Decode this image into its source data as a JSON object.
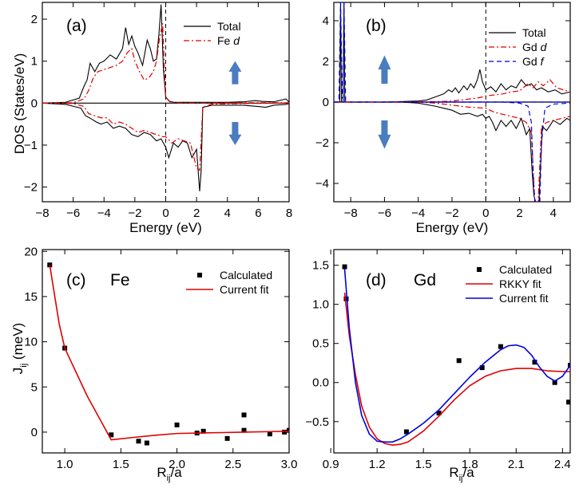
{
  "figure": {
    "ylabel_top": "DOS (States/eV)",
    "ylabel_bottom": "J",
    "ylabel_bottom_sub": "ij",
    "ylabel_bottom_unit": " (meV)",
    "xlabel_bottom": "R",
    "xlabel_bottom_sub": "ij",
    "xlabel_bottom_tail": "/a"
  },
  "colors": {
    "total": "#000000",
    "d": "#e00000",
    "f": "#0000e0",
    "arrow": "#4a7cc0",
    "calc": "#000000",
    "fit": "#e00000",
    "current": "#0000e0"
  },
  "chart_data": [
    {
      "panel": "a",
      "type": "line",
      "label": "(a)",
      "xlabel": "Energy (eV)",
      "ylabel": "DOS (States/eV)",
      "xlim": [
        -8,
        8
      ],
      "ylim": [
        -2.35,
        2.4
      ],
      "xticks": [
        -8,
        -6,
        -4,
        -2,
        0,
        2,
        4,
        6,
        8
      ],
      "yticks": [
        -2,
        -1,
        0,
        1,
        2
      ],
      "legend": [
        "Total",
        "Fe d"
      ],
      "fermi_level": 0,
      "series": [
        {
          "name": "Total up",
          "style": "solid",
          "x": [
            -8,
            -6.5,
            -5.6,
            -5.3,
            -5.1,
            -4.9,
            -4.6,
            -4.3,
            -4.0,
            -3.6,
            -3.2,
            -2.8,
            -2.6,
            -2.4,
            -2.2,
            -2.0,
            -1.8,
            -1.5,
            -1.2,
            -1.0,
            -0.8,
            -0.6,
            -0.45,
            -0.3,
            -0.15,
            0,
            0.2,
            0.5,
            1,
            2,
            3,
            4,
            5,
            5.8,
            6.3,
            7,
            7.8,
            8
          ],
          "y": [
            0,
            0.02,
            0.12,
            0.4,
            0.55,
            0.95,
            0.75,
            0.95,
            1.0,
            1.15,
            1.05,
            1.3,
            1.8,
            1.4,
            1.6,
            1.35,
            1.2,
            0.9,
            1.5,
            1.3,
            1.0,
            1.05,
            1.6,
            2.35,
            0.8,
            0.15,
            0.05,
            0.02,
            0.02,
            0.02,
            0.02,
            0.02,
            0.03,
            0.06,
            0.04,
            0.03,
            0.1,
            0.02
          ]
        },
        {
          "name": "Fe d up",
          "style": "dashdot",
          "x": [
            -8,
            -6,
            -5.3,
            -5.0,
            -4.7,
            -4.4,
            -4.0,
            -3.6,
            -3.2,
            -2.8,
            -2.5,
            -2.2,
            -2.0,
            -1.7,
            -1.4,
            -1.1,
            -0.8,
            -0.6,
            -0.4,
            -0.2,
            0,
            0.3,
            1,
            3,
            5,
            7,
            8
          ],
          "y": [
            0,
            0.01,
            0.1,
            0.3,
            0.6,
            0.75,
            0.8,
            0.85,
            0.9,
            1.0,
            1.2,
            1.3,
            1.0,
            0.75,
            0.55,
            0.6,
            0.75,
            1.0,
            1.55,
            1.9,
            0.15,
            0.02,
            0.01,
            0.01,
            0.01,
            0.01,
            0.01
          ]
        },
        {
          "name": "Total down",
          "style": "solid",
          "x": [
            -8,
            -6.5,
            -5.5,
            -5.2,
            -4.8,
            -4.5,
            -4.2,
            -3.8,
            -3.4,
            -3.0,
            -2.6,
            -2.2,
            -1.8,
            -1.4,
            -1.0,
            -0.6,
            -0.3,
            0,
            0.2,
            0.5,
            0.8,
            1.1,
            1.4,
            1.7,
            2.0,
            2.2,
            2.3,
            2.4,
            3,
            4,
            5,
            6,
            6.5,
            7,
            7.8,
            8
          ],
          "y": [
            0,
            -0.03,
            -0.12,
            -0.3,
            -0.38,
            -0.45,
            -0.5,
            -0.45,
            -0.6,
            -0.55,
            -0.6,
            -0.75,
            -0.8,
            -0.7,
            -0.75,
            -0.9,
            -0.85,
            -1.05,
            -1.3,
            -0.95,
            -1.05,
            -0.9,
            -0.95,
            -1.3,
            -1.1,
            -2.1,
            -1.6,
            -0.1,
            -0.05,
            -0.05,
            -0.05,
            -0.08,
            -0.1,
            -0.05,
            -0.03,
            -0.01
          ]
        },
        {
          "name": "Fe d down",
          "style": "dashdot",
          "x": [
            -8,
            -6,
            -5.3,
            -5.0,
            -4.6,
            -4.2,
            -3.8,
            -3.4,
            -3.0,
            -2.6,
            -2.2,
            -1.8,
            -1.4,
            -1.0,
            -0.6,
            -0.2,
            0,
            0.4,
            0.8,
            1.2,
            1.6,
            2.0,
            2.2,
            2.4,
            3,
            5,
            8
          ],
          "y": [
            0,
            -0.01,
            -0.08,
            -0.25,
            -0.3,
            -0.35,
            -0.35,
            -0.5,
            -0.45,
            -0.5,
            -0.6,
            -0.7,
            -0.65,
            -0.7,
            -0.75,
            -0.8,
            -0.8,
            -0.95,
            -0.85,
            -0.9,
            -0.95,
            -1.55,
            -1.6,
            -0.1,
            -0.02,
            -0.01,
            0
          ]
        }
      ]
    },
    {
      "panel": "b",
      "type": "line",
      "label": "(b)",
      "xlabel": "Energy (eV)",
      "xlim": [
        -9,
        5
      ],
      "ylim": [
        -4.9,
        4.9
      ],
      "xticks": [
        -8,
        -6,
        -4,
        -2,
        0,
        2,
        4
      ],
      "yticks": [
        -4,
        -2,
        0,
        2,
        4
      ],
      "legend": [
        "Total",
        "Gd d",
        "Gd f"
      ],
      "fermi_level": 0,
      "series": [
        {
          "name": "Total up",
          "style": "solid",
          "x": [
            -9,
            -8.8,
            -8.65,
            -8.6,
            -8.55,
            -8.45,
            -8.4,
            -8.35,
            -8.2,
            -6,
            -4,
            -3.5,
            -3,
            -2.5,
            -2.2,
            -2.0,
            -1.8,
            -1.6,
            -1.3,
            -1.1,
            -0.9,
            -0.7,
            -0.5,
            -0.35,
            -0.2,
            0,
            0.3,
            0.6,
            0.9,
            1.2,
            1.5,
            1.8,
            2.1,
            2.4,
            2.7,
            3.0,
            3.3,
            3.7,
            4.1,
            4.5,
            5
          ],
          "y": [
            0,
            0,
            0,
            4.9,
            0,
            0,
            4.9,
            0,
            0,
            0,
            0.05,
            0.1,
            0.25,
            0.4,
            0.6,
            0.5,
            0.7,
            0.45,
            0.8,
            0.6,
            0.9,
            0.7,
            1.1,
            1.6,
            1.0,
            0.6,
            0.75,
            0.5,
            0.9,
            0.6,
            0.8,
            0.7,
            1.1,
            0.8,
            0.9,
            0.6,
            0.7,
            0.5,
            0.6,
            0.4,
            0.5
          ]
        },
        {
          "name": "Gd d up",
          "style": "dashdot",
          "x": [
            -9,
            -4,
            -3,
            -2,
            -1.5,
            -1,
            -0.5,
            -0.2,
            0,
            0.5,
            1.0,
            1.5,
            2.0,
            2.5,
            2.8,
            3.1,
            3.4,
            3.8,
            4.2,
            4.6,
            5
          ],
          "y": [
            0,
            0,
            0.02,
            0.05,
            0.1,
            0.15,
            0.2,
            0.25,
            0.3,
            0.35,
            0.4,
            0.5,
            0.55,
            0.9,
            0.7,
            1.0,
            0.8,
            1.1,
            0.7,
            0.6,
            0.5
          ]
        },
        {
          "name": "Gd f up",
          "style": "dashed",
          "x": [
            -9,
            -8.7,
            -8.6,
            -8.5,
            -8.45,
            -8.4,
            -8.3,
            -8.0,
            5
          ],
          "y": [
            0,
            0,
            4.9,
            0.2,
            0.2,
            4.9,
            0,
            0,
            0
          ]
        },
        {
          "name": "Total down",
          "style": "solid",
          "x": [
            -9,
            -5,
            -4,
            -3,
            -2.5,
            -2.0,
            -1.5,
            -1.0,
            -0.5,
            -0.2,
            0,
            0.2,
            0.4,
            0.6,
            0.9,
            1.2,
            1.5,
            1.8,
            2.1,
            2.4,
            2.6,
            2.75,
            2.85,
            2.95,
            3.05,
            3.15,
            3.25,
            3.35,
            3.6,
            4.0,
            4.4,
            4.8,
            5
          ],
          "y": [
            0,
            0,
            -0.05,
            -0.2,
            -0.3,
            -0.4,
            -0.6,
            -0.55,
            -0.7,
            -0.6,
            -0.8,
            -0.7,
            -1.0,
            -1.4,
            -0.9,
            -1.2,
            -0.9,
            -1.3,
            -0.8,
            -1.6,
            -1.3,
            -3.5,
            -4.6,
            -4.9,
            -4.9,
            -4.9,
            -3.0,
            -1.2,
            -1.4,
            -0.9,
            -1.1,
            -0.8,
            -0.9
          ]
        },
        {
          "name": "Gd d down",
          "style": "dashdot",
          "x": [
            -9,
            -4,
            -3,
            -2,
            -1,
            0,
            0.5,
            1.0,
            1.5,
            2.0,
            2.4,
            2.7,
            2.9,
            3.1,
            3.3,
            3.6,
            4.0,
            4.5,
            5
          ],
          "y": [
            0,
            0,
            -0.05,
            -0.15,
            -0.25,
            -0.3,
            -0.5,
            -0.6,
            -0.7,
            -0.8,
            -1.0,
            -1.5,
            -4.9,
            -4.9,
            -1.2,
            -1.0,
            -0.9,
            -0.8,
            -0.7
          ]
        },
        {
          "name": "Gd f down",
          "style": "dashed",
          "x": [
            -9,
            1,
            2,
            2.5,
            2.7,
            2.8,
            2.9,
            3.0,
            3.1,
            3.2,
            3.3,
            3.5,
            4.0,
            5
          ],
          "y": [
            0,
            0,
            -0.05,
            -0.2,
            -1.0,
            -3.5,
            -4.9,
            -4.9,
            -4.9,
            -4.9,
            -2.0,
            -0.3,
            -0.1,
            -0.05
          ]
        }
      ]
    },
    {
      "panel": "c",
      "type": "scatter",
      "label": "(c)",
      "element": "Fe",
      "xlabel": "Rij/a",
      "ylabel": "Jij (meV)",
      "xlim": [
        0.8,
        3.0
      ],
      "ylim": [
        -2.3,
        20.2
      ],
      "xticks": [
        1.0,
        1.5,
        2.0,
        2.5,
        3.0
      ],
      "yticks": [
        0,
        5,
        10,
        15,
        20
      ],
      "legend": [
        "Calculated",
        "Current fit"
      ],
      "series": [
        {
          "name": "Calculated",
          "x": [
            0.866,
            1.0,
            1.414,
            1.658,
            1.732,
            2.0,
            2.179,
            2.236,
            2.449,
            2.598,
            2.598,
            2.828,
            2.958,
            3.0
          ],
          "y": [
            18.5,
            9.3,
            -0.3,
            -1.0,
            -1.2,
            0.8,
            -0.1,
            0.1,
            -0.7,
            1.9,
            0.2,
            -0.2,
            0.0,
            0.2
          ]
        },
        {
          "name": "Current fit",
          "x": [
            0.866,
            0.95,
            1.0,
            1.2,
            1.414,
            1.6,
            1.8,
            2.0,
            2.2,
            2.4,
            2.6,
            2.8,
            3.0
          ],
          "y": [
            18.5,
            12.0,
            9.3,
            4.0,
            -0.85,
            -0.6,
            -0.35,
            -0.15,
            -0.1,
            -0.05,
            0.0,
            0.05,
            0.1
          ]
        }
      ]
    },
    {
      "panel": "d",
      "type": "scatter",
      "label": "(d)",
      "element": "Gd",
      "xlabel": "Rij/a",
      "xlim": [
        0.92,
        2.45
      ],
      "ylim": [
        -0.9,
        1.7
      ],
      "xticks": [
        0.9,
        1.2,
        1.5,
        1.8,
        2.1,
        2.4
      ],
      "yticks": [
        -0.5,
        0.0,
        0.5,
        1.0,
        1.5
      ],
      "legend": [
        "Calculated",
        "RKKY fit",
        "Current fit"
      ],
      "series": [
        {
          "name": "Calculated",
          "x": [
            0.99,
            1.0,
            1.39,
            1.6,
            1.73,
            1.88,
            2.0,
            2.22,
            2.35,
            2.44,
            2.45
          ],
          "y": [
            1.48,
            1.07,
            -0.63,
            -0.39,
            0.28,
            0.19,
            0.46,
            0.26,
            0.0,
            -0.25,
            0.22
          ]
        },
        {
          "name": "RKKY fit",
          "x": [
            0.99,
            1.02,
            1.06,
            1.1,
            1.15,
            1.2,
            1.25,
            1.3,
            1.35,
            1.4,
            1.5,
            1.6,
            1.7,
            1.8,
            1.9,
            2.0,
            2.1,
            2.2,
            2.3,
            2.4,
            2.45
          ],
          "y": [
            1.15,
            0.6,
            0.1,
            -0.3,
            -0.57,
            -0.72,
            -0.78,
            -0.8,
            -0.79,
            -0.76,
            -0.62,
            -0.43,
            -0.22,
            -0.04,
            0.08,
            0.15,
            0.18,
            0.18,
            0.15,
            0.14,
            0.14
          ]
        },
        {
          "name": "Current fit",
          "x": [
            0.99,
            1.02,
            1.06,
            1.1,
            1.15,
            1.2,
            1.25,
            1.3,
            1.35,
            1.4,
            1.5,
            1.6,
            1.7,
            1.8,
            1.9,
            2.0,
            2.05,
            2.1,
            2.15,
            2.2,
            2.25,
            2.3,
            2.35,
            2.4,
            2.45
          ],
          "y": [
            1.45,
            0.7,
            0.0,
            -0.42,
            -0.66,
            -0.75,
            -0.76,
            -0.76,
            -0.72,
            -0.66,
            -0.52,
            -0.35,
            -0.14,
            0.07,
            0.26,
            0.42,
            0.47,
            0.48,
            0.45,
            0.35,
            0.2,
            0.08,
            0.02,
            0.08,
            0.22
          ]
        }
      ]
    }
  ]
}
